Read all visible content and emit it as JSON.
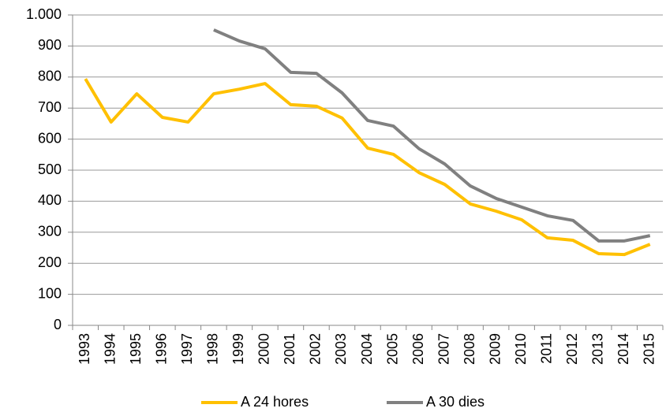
{
  "chart_data": {
    "type": "line",
    "categories": [
      "1993",
      "1994",
      "1995",
      "1996",
      "1997",
      "1998",
      "1999",
      "2000",
      "2001",
      "2002",
      "2003",
      "2004",
      "2005",
      "2006",
      "2007",
      "2008",
      "2009",
      "2010",
      "2011",
      "2012",
      "2013",
      "2014",
      "2015"
    ],
    "series": [
      {
        "name": "A 24 hores",
        "color": "#FFC000",
        "values": [
          794,
          655,
          746,
          670,
          655,
          746,
          761,
          779,
          711,
          706,
          668,
          571,
          551,
          492,
          454,
          391,
          368,
          340,
          282,
          274,
          231,
          228,
          261
        ]
      },
      {
        "name": "A 30 dies",
        "color": "#808080",
        "values": [
          null,
          null,
          null,
          null,
          null,
          952,
          916,
          891,
          815,
          812,
          749,
          660,
          642,
          569,
          520,
          449,
          409,
          381,
          353,
          338,
          272,
          272,
          289
        ]
      }
    ],
    "ylim": [
      0,
      1000
    ],
    "yticks": [
      0,
      100,
      200,
      300,
      400,
      500,
      600,
      700,
      800,
      900,
      {
        "value": 1000,
        "label": "1.000"
      }
    ],
    "grid": true,
    "legend": "bottom"
  }
}
